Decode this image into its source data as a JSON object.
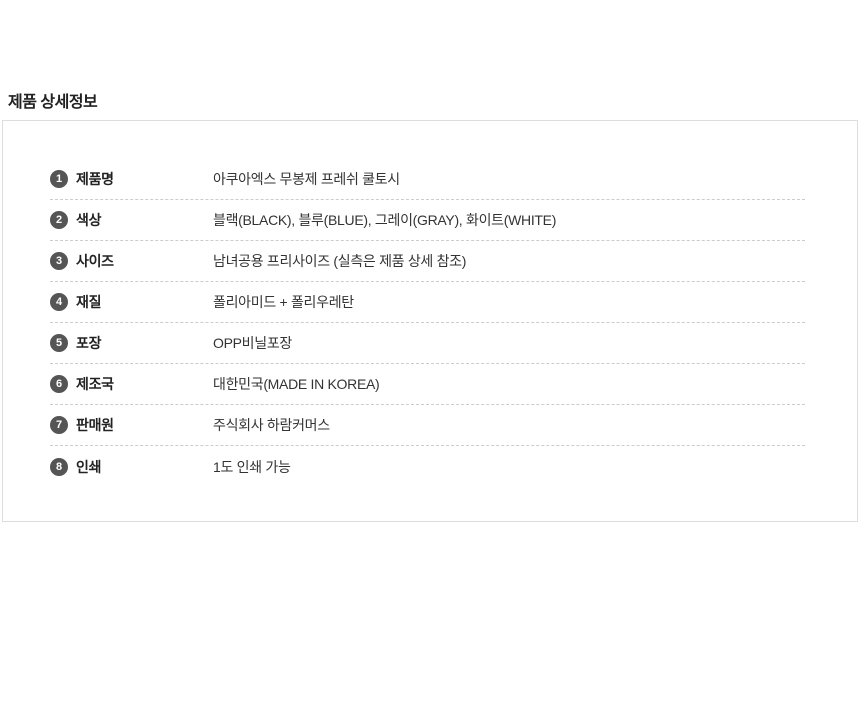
{
  "page": {
    "title": "제품 상세정보"
  },
  "colors": {
    "badge_background": "#555555",
    "badge_text": "#ffffff",
    "box_border": "#dddddd",
    "row_divider": "#cccccc",
    "title_text": "#222222",
    "label_text": "#222222",
    "value_text": "#333333",
    "page_background": "#ffffff"
  },
  "product_details": {
    "rows": [
      {
        "num": "1",
        "label": "제품명",
        "value": "아쿠아엑스 무봉제 프레쉬 쿨토시"
      },
      {
        "num": "2",
        "label": "색상",
        "value": "블랙(BLACK), 블루(BLUE), 그레이(GRAY), 화이트(WHITE)"
      },
      {
        "num": "3",
        "label": "사이즈",
        "value": "남녀공용 프리사이즈 (실측은 제품 상세 참조)"
      },
      {
        "num": "4",
        "label": "재질",
        "value": "폴리아미드 + 폴리우레탄"
      },
      {
        "num": "5",
        "label": "포장",
        "value": "OPP비닐포장"
      },
      {
        "num": "6",
        "label": "제조국",
        "value": "대한민국(MADE IN KOREA)"
      },
      {
        "num": "7",
        "label": "판매원",
        "value": "주식회사 하람커머스"
      },
      {
        "num": "8",
        "label": "인쇄",
        "value": "1도 인쇄 가능"
      }
    ]
  }
}
